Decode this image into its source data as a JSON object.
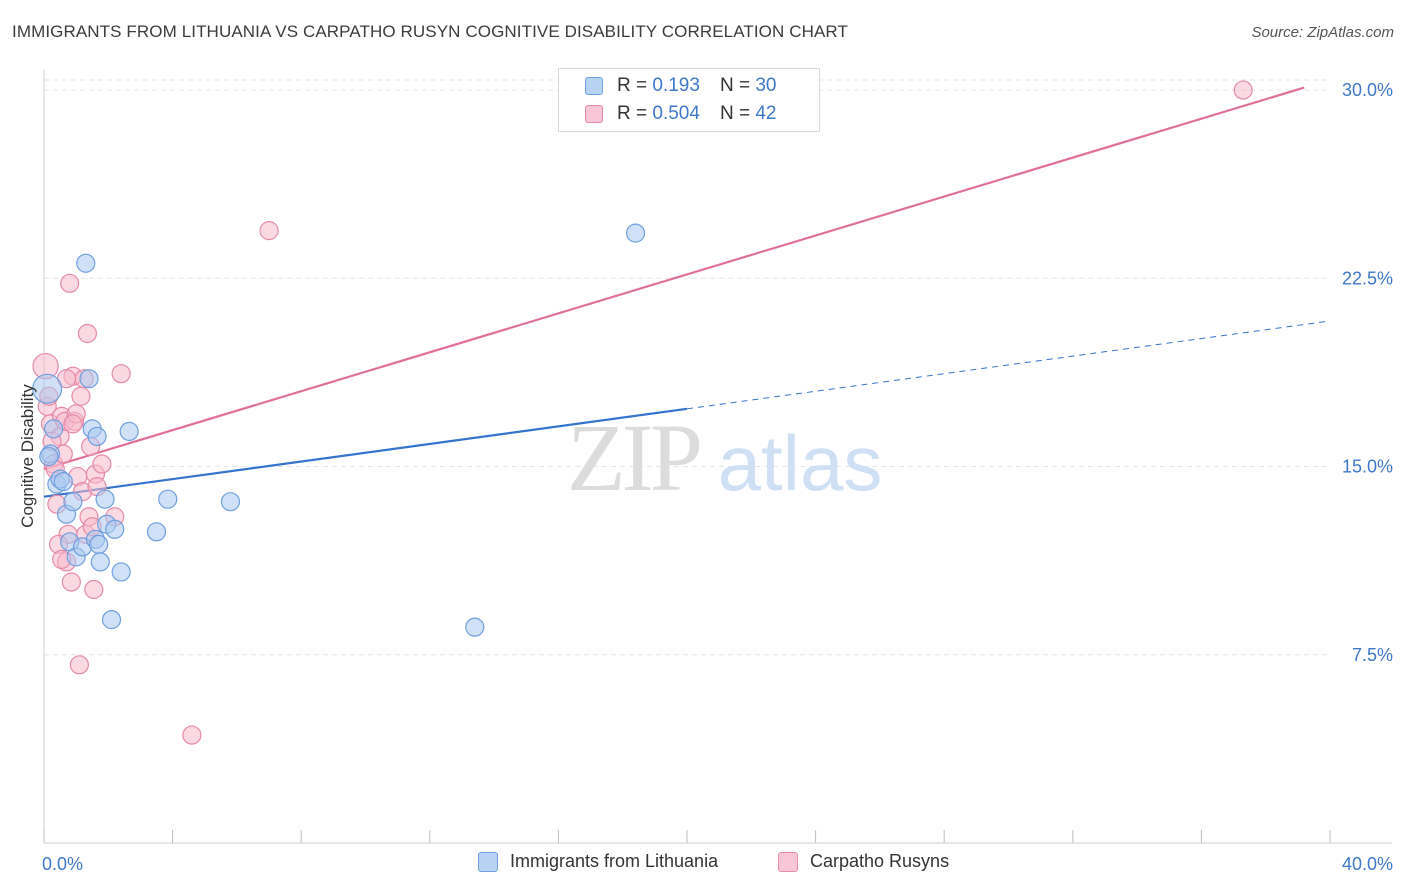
{
  "title": "IMMIGRANTS FROM LITHUANIA VS CARPATHO RUSYN COGNITIVE DISABILITY CORRELATION CHART",
  "source": "Source: ZipAtlas.com",
  "watermark": {
    "zip": "ZIP",
    "atlas": "atlas"
  },
  "colors": {
    "blue_fill": "#a9c8f0",
    "blue_stroke": "#6f9fde",
    "blue_line": "#3673cc",
    "pink_fill": "#f6b9cc",
    "pink_stroke": "#e58aa8",
    "pink_line": "#e0709a",
    "tick_label": "#3f78c9",
    "grid": "#e6e6e6"
  },
  "legend": {
    "rows": [
      {
        "r_label": "R = ",
        "r_value": "0.193",
        "n_label": "N = ",
        "n_value": "30"
      },
      {
        "r_label": "R = ",
        "r_value": "0.504",
        "n_label": "N = ",
        "n_value": "42"
      }
    ]
  },
  "chart_data": {
    "type": "scatter",
    "title": "IMMIGRANTS FROM LITHUANIA VS CARPATHO RUSYN COGNITIVE DISABILITY CORRELATION CHART",
    "xlabel": "",
    "ylabel": "Cognitive Disability",
    "xlim": [
      0,
      40
    ],
    "ylim": [
      0,
      30.8
    ],
    "x_tick_labels": [
      {
        "value": 0,
        "label": "0.0%"
      },
      {
        "value": 40,
        "label": "40.0%"
      }
    ],
    "y_ticks": [
      {
        "value": 7.5,
        "label": "7.5%"
      },
      {
        "value": 15,
        "label": "15.0%"
      },
      {
        "value": 22.5,
        "label": "22.5%"
      },
      {
        "value": 30,
        "label": "30.0%"
      }
    ],
    "grid": true,
    "legend_position": "top-center",
    "series": [
      {
        "name": "Immigrants from Lithuania",
        "color": "#a9c8f0",
        "points": [
          [
            0.1,
            18.1,
            1.6
          ],
          [
            0.2,
            15.5,
            1.0
          ],
          [
            0.3,
            16.5,
            1.0
          ],
          [
            0.4,
            14.3,
            1.0
          ],
          [
            0.5,
            14.5,
            1.0
          ],
          [
            0.6,
            14.4,
            1.0
          ],
          [
            0.7,
            13.1,
            1.0
          ],
          [
            0.8,
            12.0,
            1.0
          ],
          [
            0.9,
            13.6,
            1.0
          ],
          [
            1.0,
            11.4,
            1.0
          ],
          [
            1.2,
            11.8,
            1.0
          ],
          [
            1.3,
            23.1,
            1.0
          ],
          [
            1.4,
            18.5,
            1.0
          ],
          [
            1.5,
            16.5,
            1.0
          ],
          [
            1.6,
            12.1,
            1.0
          ],
          [
            1.65,
            16.2,
            1.0
          ],
          [
            1.7,
            11.9,
            1.0
          ],
          [
            1.75,
            11.2,
            1.0
          ],
          [
            1.9,
            13.7,
            1.0
          ],
          [
            1.95,
            12.7,
            1.0
          ],
          [
            2.2,
            12.5,
            1.0
          ],
          [
            2.1,
            8.9,
            1.0
          ],
          [
            2.4,
            10.8,
            1.0
          ],
          [
            2.65,
            16.4,
            1.0
          ],
          [
            3.5,
            12.4,
            1.0
          ],
          [
            3.85,
            13.7,
            1.0
          ],
          [
            5.8,
            13.6,
            1.0
          ],
          [
            13.4,
            8.6,
            1.0
          ],
          [
            18.4,
            24.3,
            1.0
          ],
          [
            0.15,
            15.4,
            1.0
          ]
        ],
        "trend": {
          "x": [
            0,
            20
          ],
          "y": [
            13.8,
            17.3
          ],
          "dashed_extension": {
            "x": [
              20,
              40
            ],
            "y": [
              17.3,
              20.8
            ]
          }
        }
      },
      {
        "name": "Carpatho Rusyns",
        "color": "#f6b9cc",
        "points": [
          [
            0.05,
            19.0,
            1.4
          ],
          [
            0.1,
            17.4,
            1.0
          ],
          [
            0.2,
            16.7,
            1.0
          ],
          [
            0.3,
            15.1,
            1.0
          ],
          [
            0.35,
            14.9,
            1.0
          ],
          [
            0.4,
            13.5,
            1.0
          ],
          [
            0.5,
            16.2,
            1.0
          ],
          [
            0.55,
            17.0,
            1.0
          ],
          [
            0.6,
            15.5,
            1.0
          ],
          [
            0.65,
            16.8,
            1.0
          ],
          [
            0.7,
            11.2,
            1.0
          ],
          [
            0.75,
            12.3,
            1.0
          ],
          [
            0.8,
            22.3,
            1.0
          ],
          [
            0.85,
            10.4,
            1.0
          ],
          [
            0.9,
            18.6,
            1.0
          ],
          [
            0.95,
            16.8,
            1.0
          ],
          [
            1.0,
            17.1,
            1.0
          ],
          [
            1.05,
            14.6,
            1.0
          ],
          [
            1.1,
            7.1,
            1.0
          ],
          [
            1.15,
            17.8,
            1.0
          ],
          [
            1.2,
            14.0,
            1.0
          ],
          [
            1.3,
            12.3,
            1.0
          ],
          [
            1.35,
            20.3,
            1.0
          ],
          [
            1.4,
            13.0,
            1.0
          ],
          [
            1.45,
            15.8,
            1.0
          ],
          [
            1.5,
            12.6,
            1.0
          ],
          [
            1.55,
            10.1,
            1.0
          ],
          [
            1.6,
            14.7,
            1.0
          ],
          [
            1.65,
            14.2,
            1.0
          ],
          [
            1.8,
            15.1,
            1.0
          ],
          [
            2.2,
            13.0,
            1.0
          ],
          [
            2.4,
            18.7,
            1.0
          ],
          [
            4.6,
            4.3,
            1.0
          ],
          [
            7.0,
            24.4,
            1.0
          ],
          [
            0.25,
            16.0,
            1.0
          ],
          [
            0.45,
            11.9,
            1.0
          ],
          [
            0.15,
            17.8,
            1.0
          ],
          [
            1.25,
            18.5,
            1.0
          ],
          [
            0.55,
            11.3,
            1.0
          ],
          [
            0.7,
            18.5,
            1.0
          ],
          [
            0.9,
            16.7,
            1.0
          ],
          [
            37.3,
            30.0,
            1.0
          ]
        ],
        "trend": {
          "x": [
            0,
            39.2
          ],
          "y": [
            14.9,
            30.1
          ]
        }
      }
    ]
  }
}
